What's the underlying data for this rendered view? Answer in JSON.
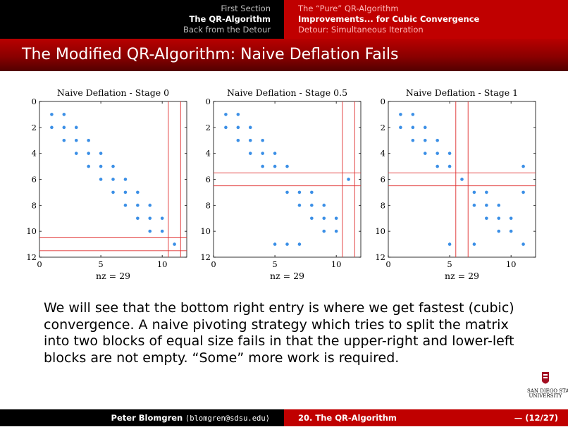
{
  "nav": {
    "left": [
      "First Section",
      "The QR-Algorithm",
      "Back from the Detour"
    ],
    "left_active": 1,
    "right": [
      "The “Pure” QR-Algorithm",
      "Improvements... for Cubic Convergence",
      "Detour: Simultaneous Iteration"
    ],
    "right_active": 1
  },
  "slide_title": "The Modified QR-Algorithm: Naive Deflation Fails",
  "chart_data": [
    {
      "type": "scatter",
      "title": "Naive Deflation - Stage 0",
      "xlabel": "nz = 29",
      "ylabel": "",
      "xlim": [
        0,
        12
      ],
      "ylim": [
        0,
        12
      ],
      "y_inverted": true,
      "xticks": [
        0,
        5,
        10
      ],
      "yticks": [
        0,
        2,
        4,
        6,
        8,
        10,
        12
      ],
      "points": [
        [
          1,
          1
        ],
        [
          2,
          1
        ],
        [
          1,
          2
        ],
        [
          2,
          2
        ],
        [
          3,
          2
        ],
        [
          2,
          3
        ],
        [
          3,
          3
        ],
        [
          4,
          3
        ],
        [
          3,
          4
        ],
        [
          4,
          4
        ],
        [
          5,
          4
        ],
        [
          4,
          5
        ],
        [
          5,
          5
        ],
        [
          6,
          5
        ],
        [
          5,
          6
        ],
        [
          6,
          6
        ],
        [
          7,
          6
        ],
        [
          6,
          7
        ],
        [
          7,
          7
        ],
        [
          8,
          7
        ],
        [
          7,
          8
        ],
        [
          8,
          8
        ],
        [
          9,
          8
        ],
        [
          8,
          9
        ],
        [
          9,
          9
        ],
        [
          10,
          9
        ],
        [
          9,
          10
        ],
        [
          10,
          10
        ],
        [
          11,
          11
        ]
      ],
      "hlines": [
        10.5,
        11.5
      ],
      "vlines": [
        10.5,
        11.5
      ]
    },
    {
      "type": "scatter",
      "title": "Naive Deflation - Stage 0.5",
      "xlabel": "nz = 29",
      "ylabel": "",
      "xlim": [
        0,
        12
      ],
      "ylim": [
        0,
        12
      ],
      "y_inverted": true,
      "xticks": [
        0,
        5,
        10
      ],
      "yticks": [
        0,
        2,
        4,
        6,
        8,
        10,
        12
      ],
      "points": [
        [
          1,
          1
        ],
        [
          2,
          1
        ],
        [
          1,
          2
        ],
        [
          2,
          2
        ],
        [
          3,
          2
        ],
        [
          2,
          3
        ],
        [
          3,
          3
        ],
        [
          4,
          3
        ],
        [
          3,
          4
        ],
        [
          4,
          4
        ],
        [
          5,
          4
        ],
        [
          4,
          5
        ],
        [
          5,
          5
        ],
        [
          6,
          5
        ],
        [
          11,
          6
        ],
        [
          6,
          7
        ],
        [
          7,
          7
        ],
        [
          8,
          7
        ],
        [
          7,
          8
        ],
        [
          8,
          8
        ],
        [
          9,
          8
        ],
        [
          8,
          9
        ],
        [
          9,
          9
        ],
        [
          10,
          9
        ],
        [
          9,
          10
        ],
        [
          10,
          10
        ],
        [
          5,
          11
        ],
        [
          6,
          11
        ],
        [
          7,
          11
        ]
      ],
      "hlines": [
        5.5,
        6.5
      ],
      "vlines": [
        10.5,
        11.5
      ]
    },
    {
      "type": "scatter",
      "title": "Naive Deflation - Stage 1",
      "xlabel": "nz = 29",
      "ylabel": "",
      "xlim": [
        0,
        12
      ],
      "ylim": [
        0,
        12
      ],
      "y_inverted": true,
      "xticks": [
        0,
        5,
        10
      ],
      "yticks": [
        0,
        2,
        4,
        6,
        8,
        10,
        12
      ],
      "points": [
        [
          1,
          1
        ],
        [
          2,
          1
        ],
        [
          1,
          2
        ],
        [
          2,
          2
        ],
        [
          3,
          2
        ],
        [
          2,
          3
        ],
        [
          3,
          3
        ],
        [
          4,
          3
        ],
        [
          3,
          4
        ],
        [
          4,
          4
        ],
        [
          5,
          4
        ],
        [
          4,
          5
        ],
        [
          5,
          5
        ],
        [
          11,
          5
        ],
        [
          6,
          6
        ],
        [
          7,
          7
        ],
        [
          8,
          7
        ],
        [
          11,
          7
        ],
        [
          7,
          8
        ],
        [
          8,
          8
        ],
        [
          9,
          8
        ],
        [
          8,
          9
        ],
        [
          9,
          9
        ],
        [
          10,
          9
        ],
        [
          9,
          10
        ],
        [
          10,
          10
        ],
        [
          5,
          11
        ],
        [
          7,
          11
        ],
        [
          11,
          11
        ]
      ],
      "hlines": [
        5.5,
        6.5
      ],
      "vlines": [
        5.5,
        6.5
      ]
    }
  ],
  "body_text": "We will see that the bottom right entry is where we get fastest (cubic) convergence. A naive pivoting strategy which tries to split the matrix into two blocks of equal size fails in that the upper-right and lower-left blocks are not empty. “Some” more work is required.",
  "logo": {
    "line1": "SAN DIEGO STATE",
    "line2": "UNIVERSITY"
  },
  "footer": {
    "author": "Peter Blomgren",
    "email": "⟨blomgren@sdsu.edu⟩",
    "section": "20. The QR-Algorithm",
    "page": "— (12/27)"
  },
  "colors": {
    "accent": "#c00000",
    "point": "#3b8fe6",
    "deflation_line": "#e03030"
  }
}
